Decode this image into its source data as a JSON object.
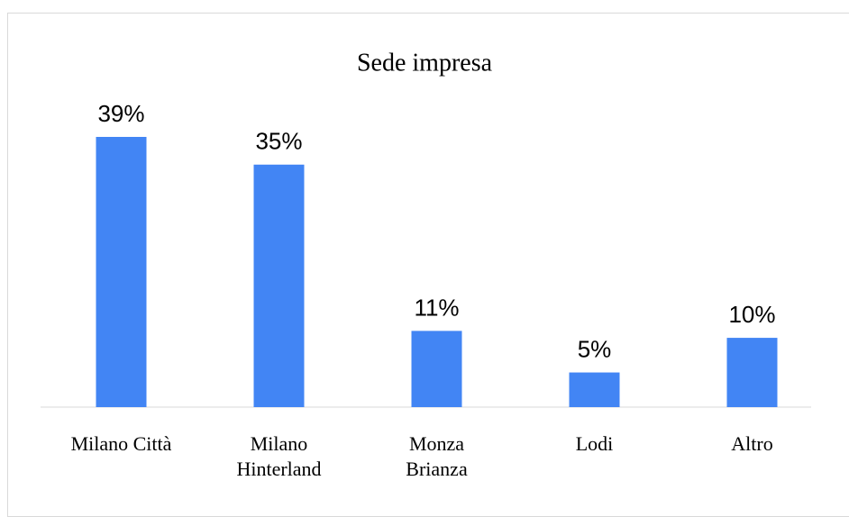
{
  "chart_data": {
    "type": "bar",
    "title": "Sede impresa",
    "categories": [
      "Milano Città",
      "Milano Hinterland",
      "Monza Brianza",
      "Lodi",
      "Altro"
    ],
    "values": [
      39,
      35,
      11,
      5,
      10
    ],
    "value_labels": [
      "39%",
      "35%",
      "11%",
      "5%",
      "10%"
    ],
    "color": "#4285f4"
  }
}
